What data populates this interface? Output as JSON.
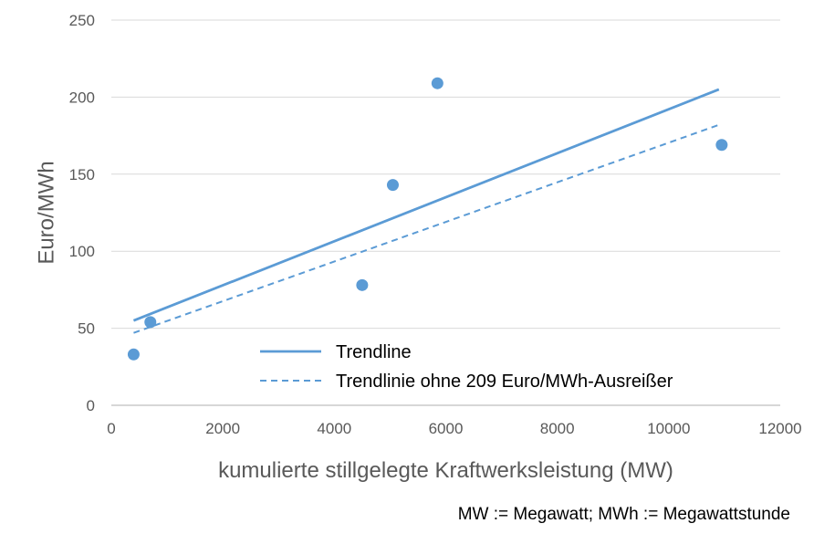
{
  "chart_data": {
    "type": "scatter",
    "xlabel": "kumulierte stillgelegte Kraftwerksleistung (MW)",
    "ylabel": "Euro/MWh",
    "xlim": [
      0,
      12000
    ],
    "ylim": [
      0,
      250
    ],
    "x_ticks": [
      "0",
      "2000",
      "4000",
      "6000",
      "8000",
      "10000",
      "12000"
    ],
    "y_ticks": [
      "0",
      "50",
      "100",
      "150",
      "200",
      "250"
    ],
    "grid": "horizontal",
    "legend_position": "bottom-center",
    "points": [
      {
        "x": 400,
        "y": 33
      },
      {
        "x": 700,
        "y": 54
      },
      {
        "x": 4500,
        "y": 78
      },
      {
        "x": 5050,
        "y": 143
      },
      {
        "x": 5850,
        "y": 209
      },
      {
        "x": 10950,
        "y": 169
      }
    ],
    "trendlines": [
      {
        "name": "Trendline",
        "style": "solid",
        "x": [
          400,
          10900
        ],
        "y": [
          55,
          205
        ]
      },
      {
        "name": "Trendlinie  ohne 209 Euro/MWh-Ausreißer",
        "style": "dashed",
        "x": [
          400,
          10900
        ],
        "y": [
          47,
          182
        ]
      }
    ],
    "colors": {
      "series": "#5b9bd5",
      "grid": "#d9d9d9",
      "axis": "#bfbfbf",
      "text": "#595959"
    }
  },
  "footnote": "MW := Megawatt; MWh := Megawattstunde"
}
